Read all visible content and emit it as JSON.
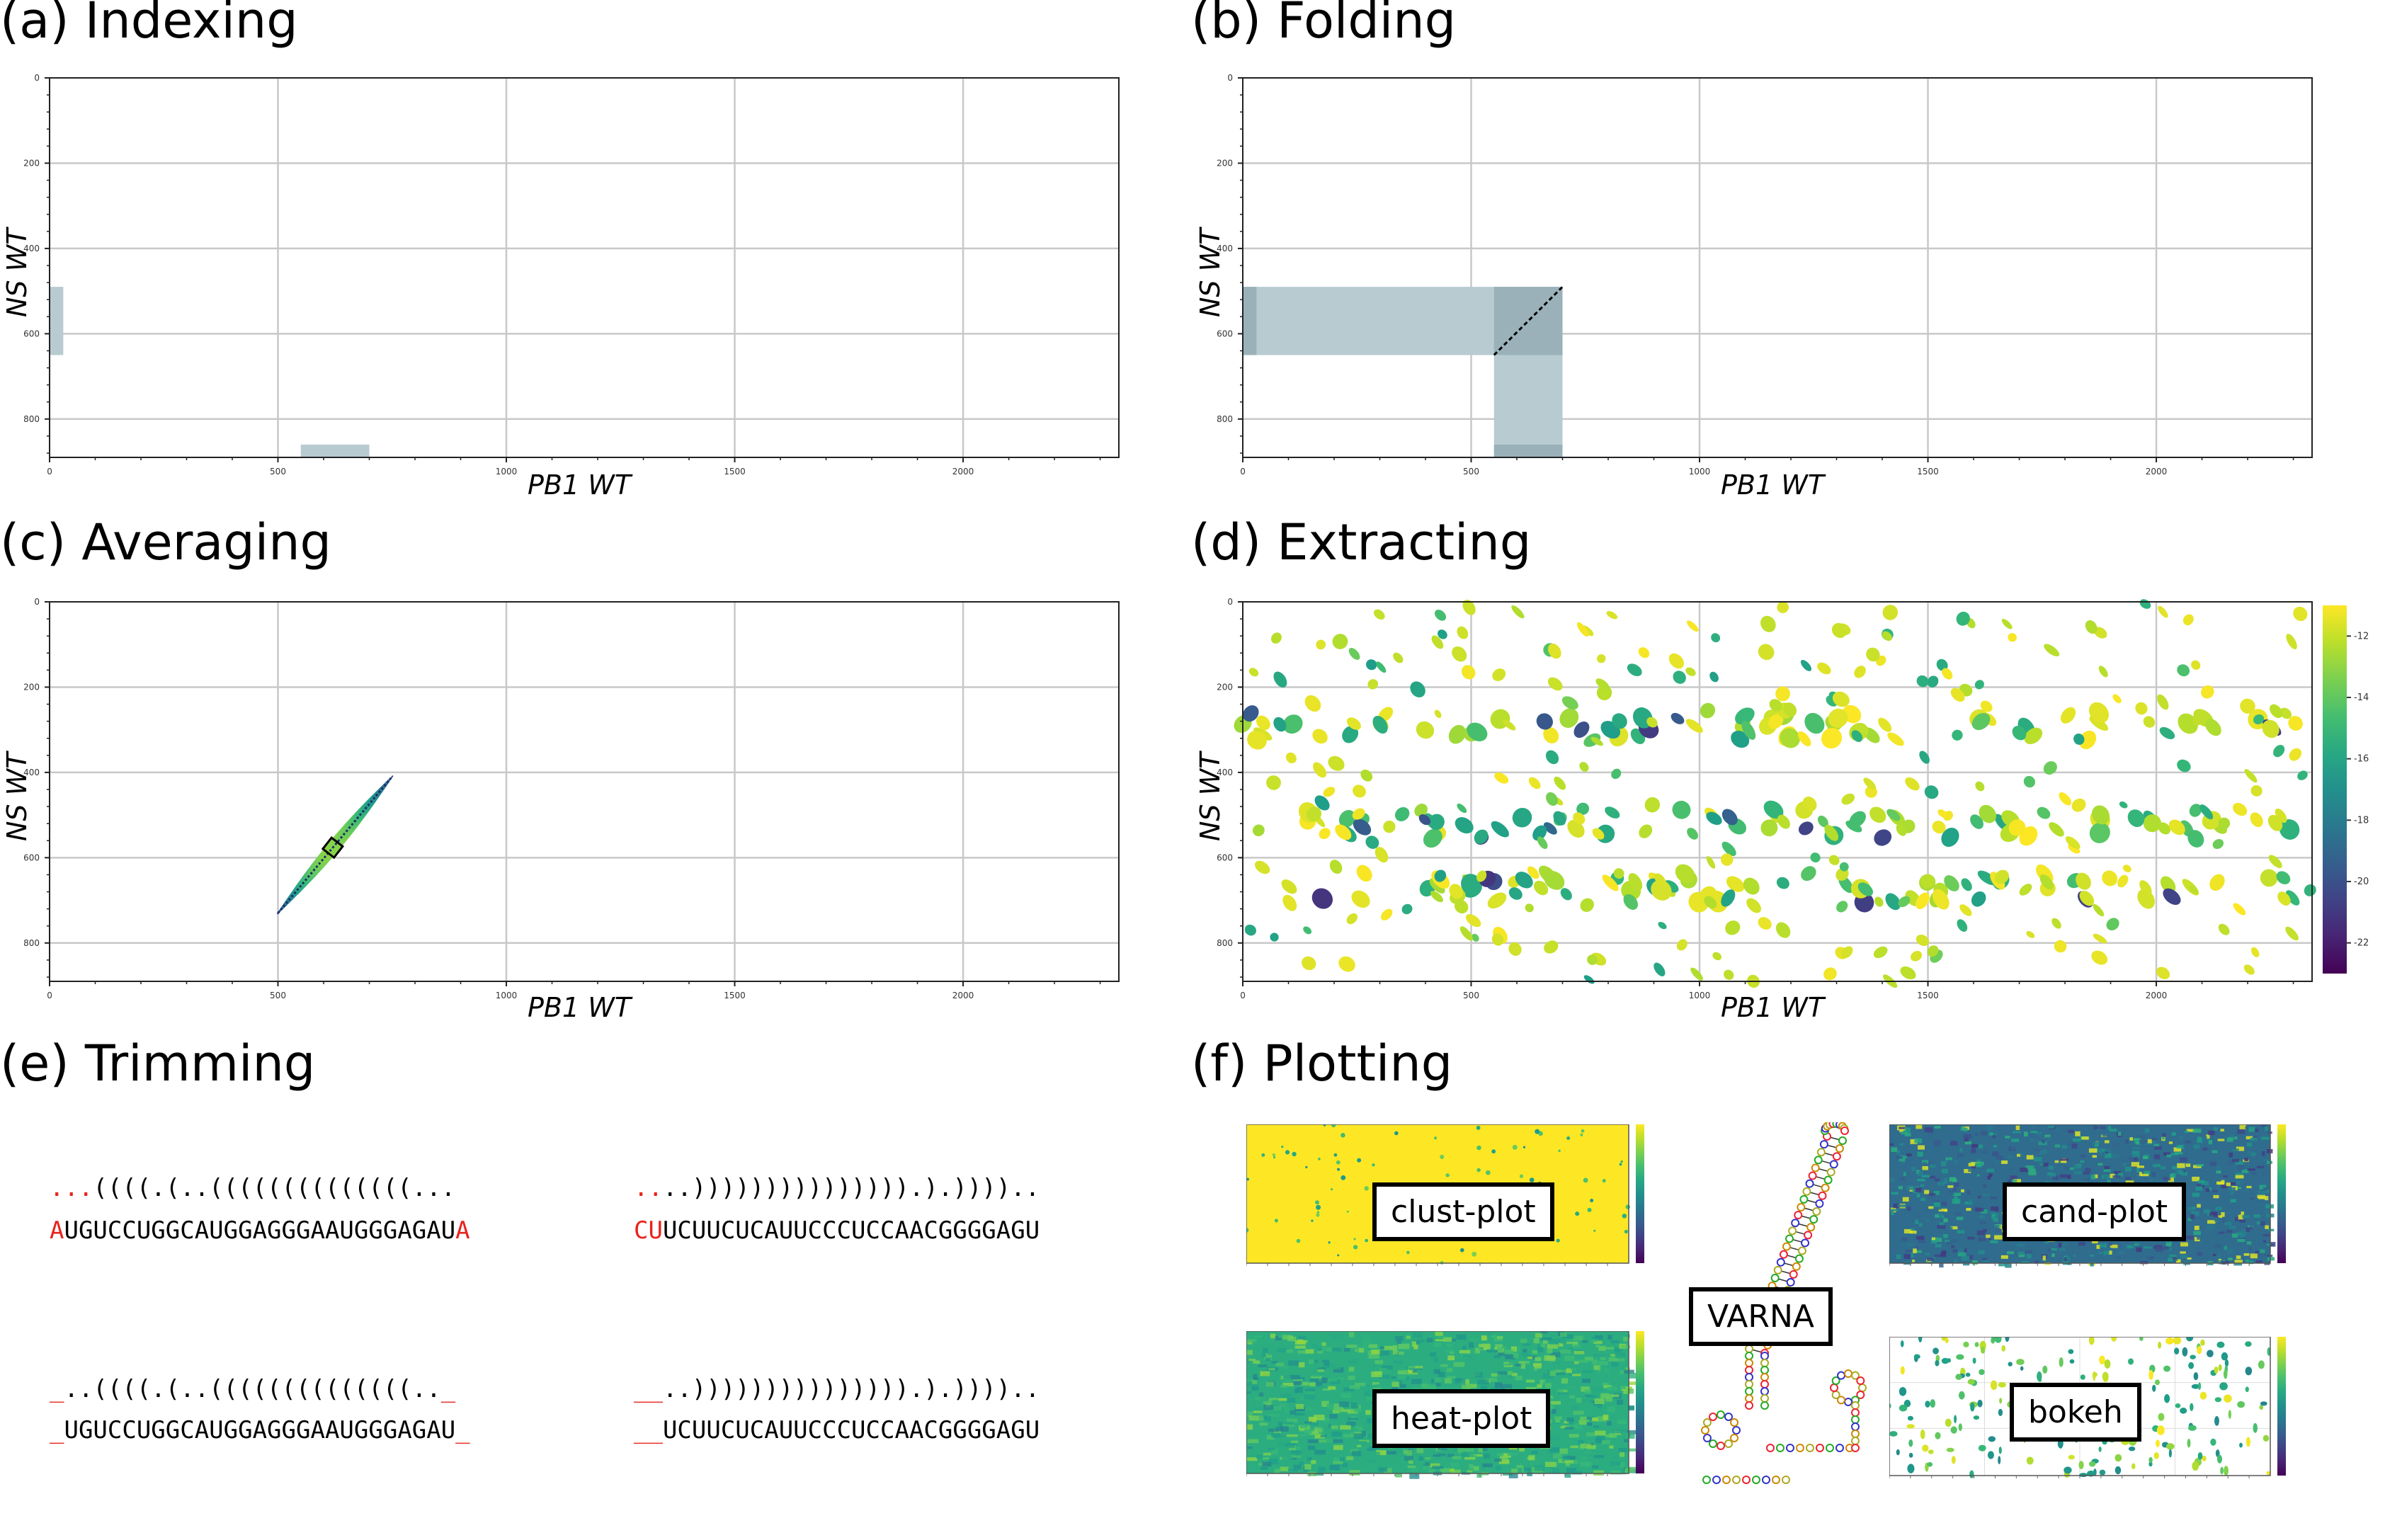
{
  "panels": {
    "a": {
      "title": "(a) Indexing"
    },
    "b": {
      "title": "(b) Folding"
    },
    "c": {
      "title": "(c) Averaging"
    },
    "d": {
      "title": "(d) Extracting"
    },
    "e": {
      "title": "(e) Trimming"
    },
    "f": {
      "title": "(f) Plotting"
    }
  },
  "axes": {
    "xlabel": "PB1 WT",
    "ylabel": "NS WT",
    "xticks": [
      "0",
      "500",
      "1000",
      "1500",
      "2000"
    ],
    "yticks": [
      "0",
      "200",
      "400",
      "600",
      "800"
    ],
    "xlim": [
      0,
      2341
    ],
    "ylim": [
      890,
      0
    ]
  },
  "colorbar": {
    "ticks": [
      "-12",
      "-14",
      "-16",
      "-18",
      "-20",
      "-22"
    ],
    "range": [
      -23,
      -11
    ],
    "colormap": "viridis"
  },
  "chart_data": [
    {
      "type": "heatmap",
      "panel": "a",
      "regions": [
        {
          "x": [
            0,
            30
          ],
          "y": [
            490,
            650
          ]
        },
        {
          "x": [
            550,
            700
          ],
          "y": [
            860,
            890
          ]
        }
      ],
      "color": "#b7cbd1"
    },
    {
      "type": "heatmap",
      "panel": "b",
      "regions": [
        {
          "x": [
            0,
            700
          ],
          "y": [
            490,
            650
          ]
        },
        {
          "x": [
            550,
            700
          ],
          "y": [
            490,
            890
          ]
        }
      ],
      "diagonal": {
        "x": [
          550,
          700
        ],
        "y": [
          650,
          490
        ]
      },
      "color": "#b7cbd1"
    },
    {
      "type": "heatmap",
      "panel": "c",
      "diagonal_band": {
        "x": [
          500,
          750
        ],
        "y": [
          730,
          410
        ]
      },
      "colormap": "viridis"
    },
    {
      "type": "heatmap",
      "panel": "d",
      "description_rows_y": [
        290,
        520,
        670
      ],
      "colormap": "viridis",
      "value_range": [
        -23,
        -11
      ]
    }
  ],
  "trimming": {
    "left": {
      "struct_top": {
        "pre": "...",
        "mid": "((((.(..((((((((((((((...",
        "post": ""
      },
      "seq_top": {
        "pre": "A",
        "mid": "UGUCCUGGCAUGGAGGGAAUGGGAGAU",
        "post": "A"
      },
      "struct_bottom": {
        "pre": "_",
        "mid": "..((((.(..((((((((((((((..",
        "post": "_"
      },
      "seq_bottom": {
        "pre": "_",
        "mid": "UGUCCUGGCAUGGAGGGAAUGGGAGAU",
        "post": "_"
      }
    },
    "right": {
      "struct_top": {
        "pre": "..",
        "mid": "..))))))))))))))).).)))).."
      },
      "seq_top": {
        "pre": "CU",
        "mid": "UCUUCUCAUUCCCUCCAACGGGGAGU"
      },
      "struct_bottom": {
        "pre": "__",
        "mid": "..))))))))))))))).).)))).."
      },
      "seq_bottom": {
        "pre": "__",
        "mid": "UCUUCUCAUUCCCUCCAACGGGGAGU"
      }
    }
  },
  "plotting": {
    "clust": "clust-plot",
    "cand": "cand-plot",
    "varna": "VARNA",
    "heat": "heat-plot",
    "bokeh": "bokeh"
  },
  "colors": {
    "mask": "#b7cbd1",
    "mask_overlap": "#9ab1b9",
    "grid": "#c8c8c8",
    "trim_red": "#e8231c",
    "yellow": "#fde725"
  }
}
